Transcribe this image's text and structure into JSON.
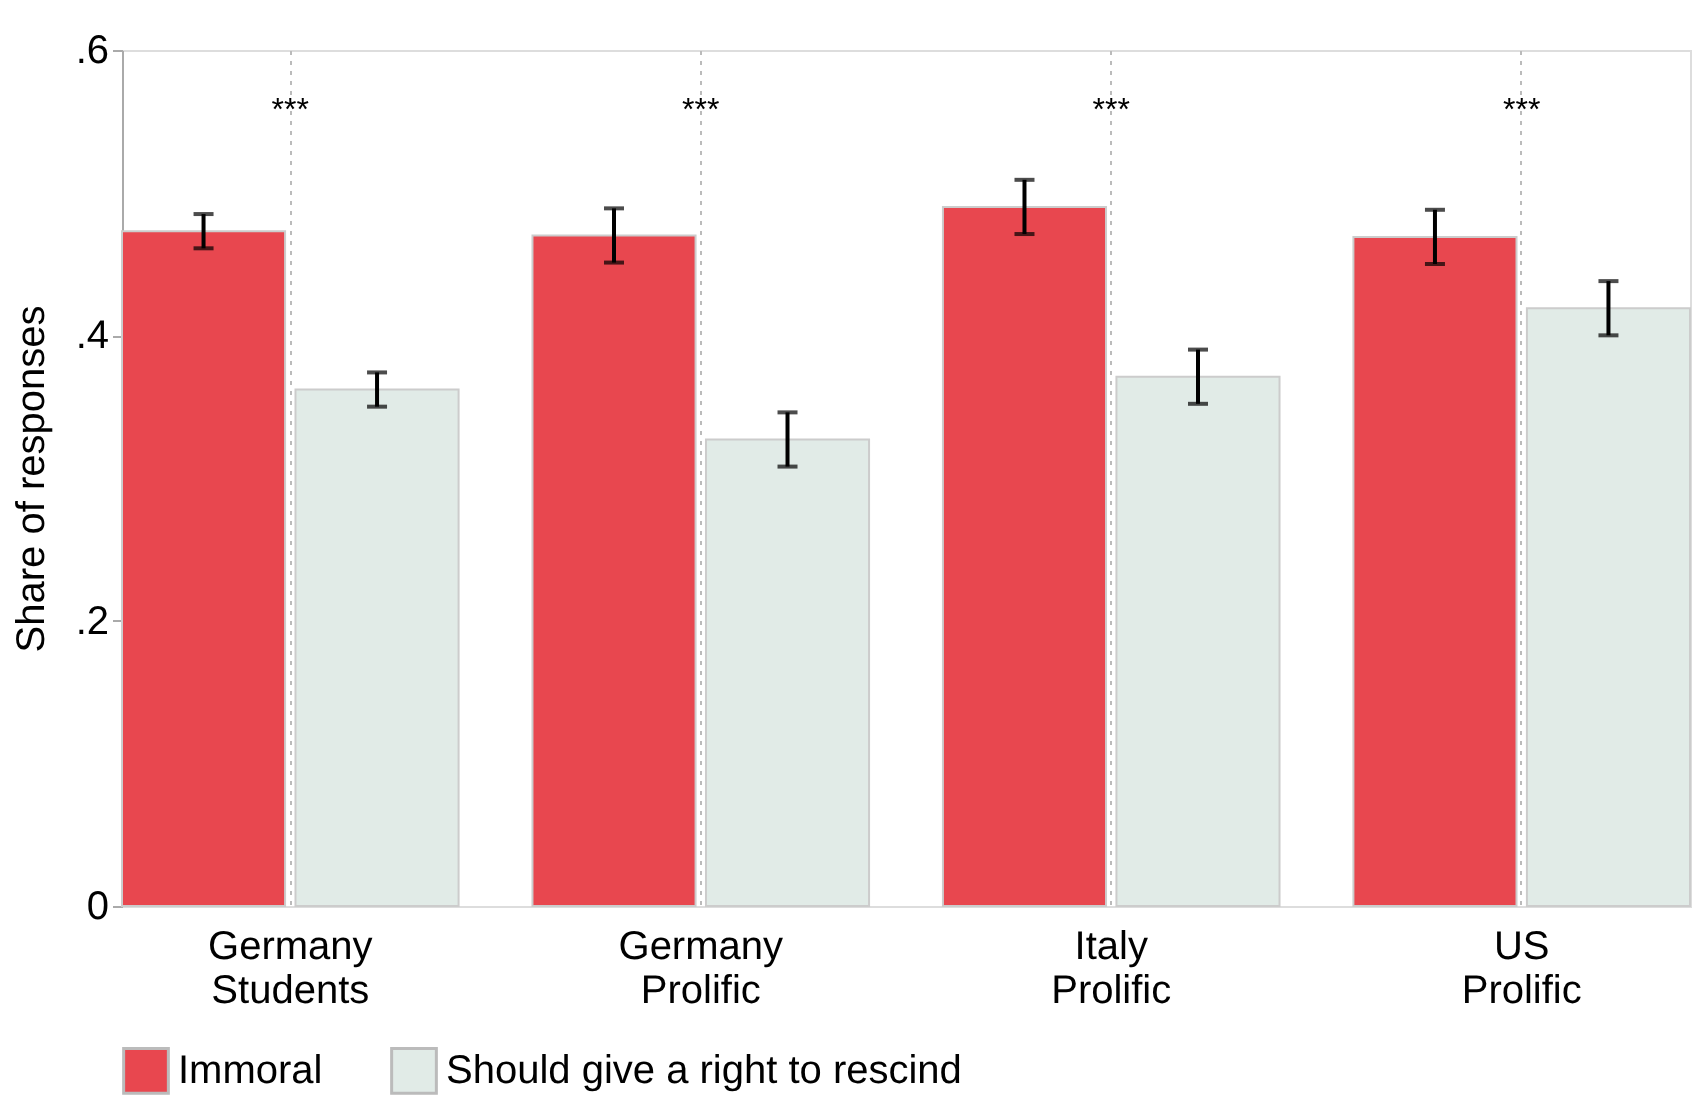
{
  "chart_data": {
    "type": "bar",
    "ylabel": "Share of responses",
    "categories": [
      "Germany Students",
      "Germany Prolific",
      "Italy Prolific",
      "US Prolific"
    ],
    "series": [
      {
        "name": "Immoral",
        "color": "#e8474f",
        "values": [
          0.473,
          0.47,
          0.49,
          0.469
        ],
        "errors": [
          0.012,
          0.019,
          0.019,
          0.019
        ]
      },
      {
        "name": "Should give a right to rescind",
        "color": "#e1ebe7",
        "values": [
          0.362,
          0.327,
          0.371,
          0.419
        ],
        "errors": [
          0.012,
          0.019,
          0.019,
          0.019
        ]
      }
    ],
    "ylim": [
      0,
      0.6
    ],
    "yticks": [
      {
        "value": 0,
        "label": "0"
      },
      {
        "value": 0.2,
        "label": ".2"
      },
      {
        "value": 0.4,
        "label": ".4"
      },
      {
        "value": 0.6,
        "label": ".6"
      }
    ],
    "annotations": [
      "***",
      "***",
      "***",
      "***"
    ],
    "grid": "x",
    "legend": "bottom"
  }
}
